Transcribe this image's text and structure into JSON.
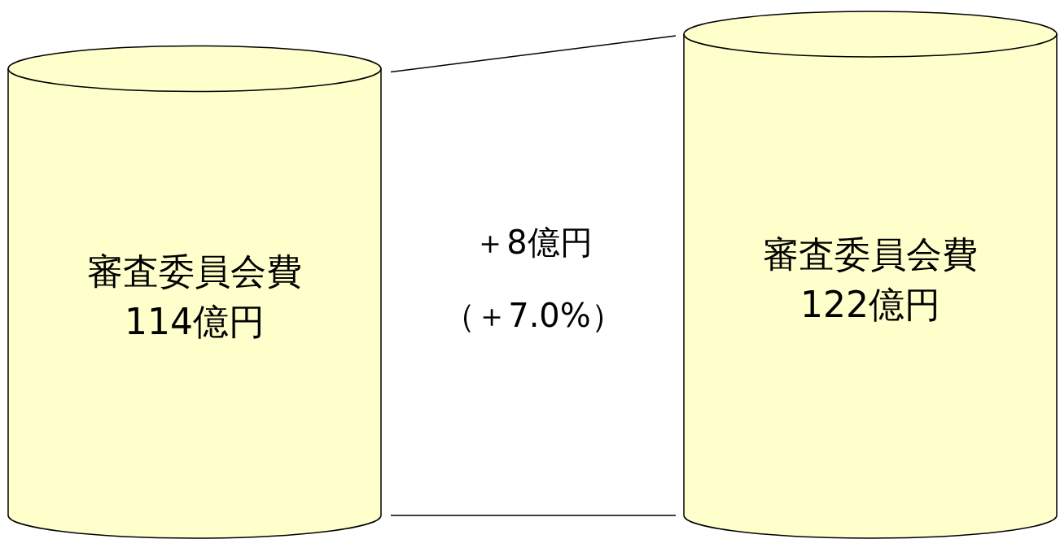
{
  "chart_data": {
    "type": "bar",
    "categories": [
      "審査委員会費",
      "審査委員会費"
    ],
    "values": [
      114,
      122
    ],
    "value_labels": [
      "114億円",
      "122億円"
    ],
    "color": "#ffffcc",
    "annotations": [
      "＋8億円",
      "（＋7.0%）"
    ]
  }
}
